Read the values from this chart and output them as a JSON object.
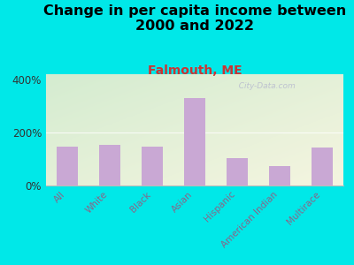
{
  "title": "Change in per capita income between\n2000 and 2022",
  "subtitle": "Falmouth, ME",
  "categories": [
    "All",
    "White",
    "Black",
    "Asian",
    "Hispanic",
    "American Indian",
    "Multirace"
  ],
  "values": [
    148,
    152,
    148,
    330,
    105,
    75,
    145
  ],
  "bar_color": "#c9a8d4",
  "title_fontsize": 11.5,
  "subtitle_fontsize": 10,
  "subtitle_color": "#cc3333",
  "background_color": "#00e8e8",
  "plot_bg_color_tl": "#d4ecd0",
  "plot_bg_color_br": "#f0f0e0",
  "ylim": [
    0,
    420
  ],
  "yticks": [
    0,
    200,
    400
  ],
  "ytick_labels": [
    "0%",
    "200%",
    "400%"
  ],
  "watermark": "  City-Data.com",
  "tick_label_color": "#886688",
  "tick_label_fontsize": 7.5,
  "ytick_fontsize": 8.5,
  "ytick_color": "#333333"
}
